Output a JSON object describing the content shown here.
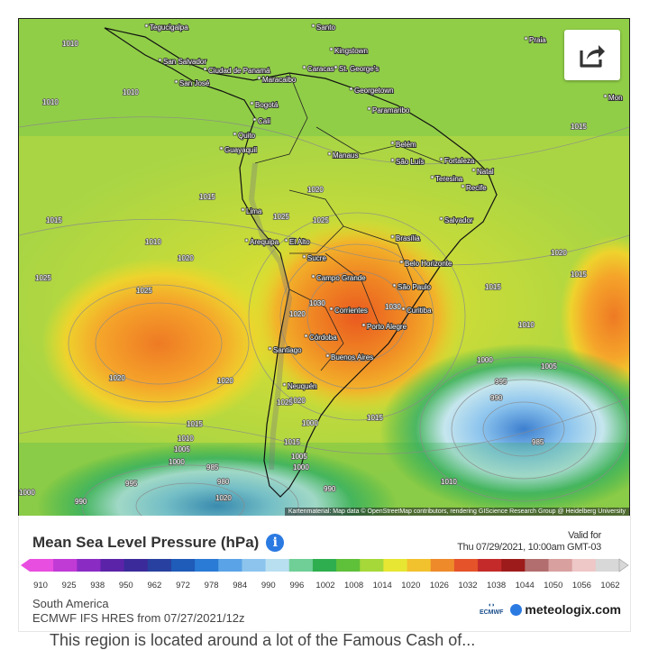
{
  "map": {
    "attribution": "Kartenmaterial: Map data © OpenStreetMap contributors, rendering GIScience Research Group @ Heidelberg University",
    "cities": [
      {
        "name": "Tegucigalpa"
      },
      {
        "name": "San Salvador"
      },
      {
        "name": "San José"
      },
      {
        "name": "Ciudad de Panamá"
      },
      {
        "name": "Caracas"
      },
      {
        "name": "Maracaibo"
      },
      {
        "name": "Kingstown"
      },
      {
        "name": "St. George's"
      },
      {
        "name": "Georgetown"
      },
      {
        "name": "Paramaribo"
      },
      {
        "name": "Bogotá"
      },
      {
        "name": "Cali"
      },
      {
        "name": "Quito"
      },
      {
        "name": "Guayaquil"
      },
      {
        "name": "Manaus"
      },
      {
        "name": "Belém"
      },
      {
        "name": "São Luís"
      },
      {
        "name": "Fortaleza"
      },
      {
        "name": "Natal"
      },
      {
        "name": "Teresina"
      },
      {
        "name": "Recife"
      },
      {
        "name": "Salvador"
      },
      {
        "name": "Lima"
      },
      {
        "name": "Arequipa"
      },
      {
        "name": "El Alto"
      },
      {
        "name": "Sucre"
      },
      {
        "name": "Brasília"
      },
      {
        "name": "Belo Horizonte"
      },
      {
        "name": "Campo Grande"
      },
      {
        "name": "São Paulo"
      },
      {
        "name": "Curitiba"
      },
      {
        "name": "Corrientes"
      },
      {
        "name": "Porto Alegre"
      },
      {
        "name": "Córdoba"
      },
      {
        "name": "Santiago"
      },
      {
        "name": "Buenos Aires"
      },
      {
        "name": "Neuquén"
      },
      {
        "name": "Santo"
      },
      {
        "name": "Mon"
      },
      {
        "name": "Praia"
      }
    ],
    "isobars": [
      "1010",
      "1010",
      "1010",
      "1010",
      "1015",
      "1015",
      "1015",
      "1020",
      "1020",
      "1020",
      "1025",
      "1025",
      "1025",
      "1025",
      "1030",
      "1030",
      "1015",
      "1020",
      "1010",
      "1005",
      "1000",
      "995",
      "990",
      "985",
      "1015",
      "1010",
      "1005",
      "1000",
      "1000",
      "995",
      "990",
      "985",
      "980",
      "1020",
      "1020",
      "1015",
      "1015",
      "1010",
      "1005",
      "1000",
      "990",
      "1000",
      "1020",
      "1015",
      "1020",
      "1025"
    ]
  },
  "share_icon": "share-icon",
  "legend": {
    "title": "Mean Sea Level Pressure (hPa)",
    "info_icon": "i",
    "valid_for_label": "Valid for",
    "valid_for_value": "Thu 07/29/2021, 10:00am GMT-03",
    "scale_labels": [
      "910",
      "925",
      "938",
      "950",
      "962",
      "972",
      "978",
      "984",
      "990",
      "996",
      "1002",
      "1008",
      "1014",
      "1020",
      "1026",
      "1032",
      "1038",
      "1044",
      "1050",
      "1056",
      "1062"
    ],
    "region": "South America",
    "model": "ECMWF IFS HRES from 07/27/2021/12z",
    "ecmwf_label": "ECMWF",
    "brand": "meteologix.com",
    "colors": [
      "#e84ee0",
      "#c03ad6",
      "#8a2bc4",
      "#5b23a8",
      "#3a2a9a",
      "#28409f",
      "#1f5bb8",
      "#2a7bd5",
      "#5aa3e6",
      "#8cc4ee",
      "#b8dff0",
      "#6fcf97",
      "#2fae4f",
      "#5fc03a",
      "#a6d83a",
      "#e6e633",
      "#f2c12e",
      "#ee8a2a",
      "#e4532a",
      "#c42a2a",
      "#9e1b1b",
      "#b26e6e",
      "#d9a0a0",
      "#eec7c7",
      "#d8d8d8"
    ],
    "map_colors": {
      "high": "#ec6a22",
      "mid_high": "#f5a623",
      "mid": "#e6dd2c",
      "neutral": "#b4d94a",
      "low1": "#5cc04a",
      "low2": "#2fae4f",
      "low3": "#a7dbe8",
      "low4": "#6fb3df",
      "low5": "#3d7fcf"
    }
  },
  "footer": {
    "text": "This region is located around a lot of the Famous Cash of..."
  }
}
